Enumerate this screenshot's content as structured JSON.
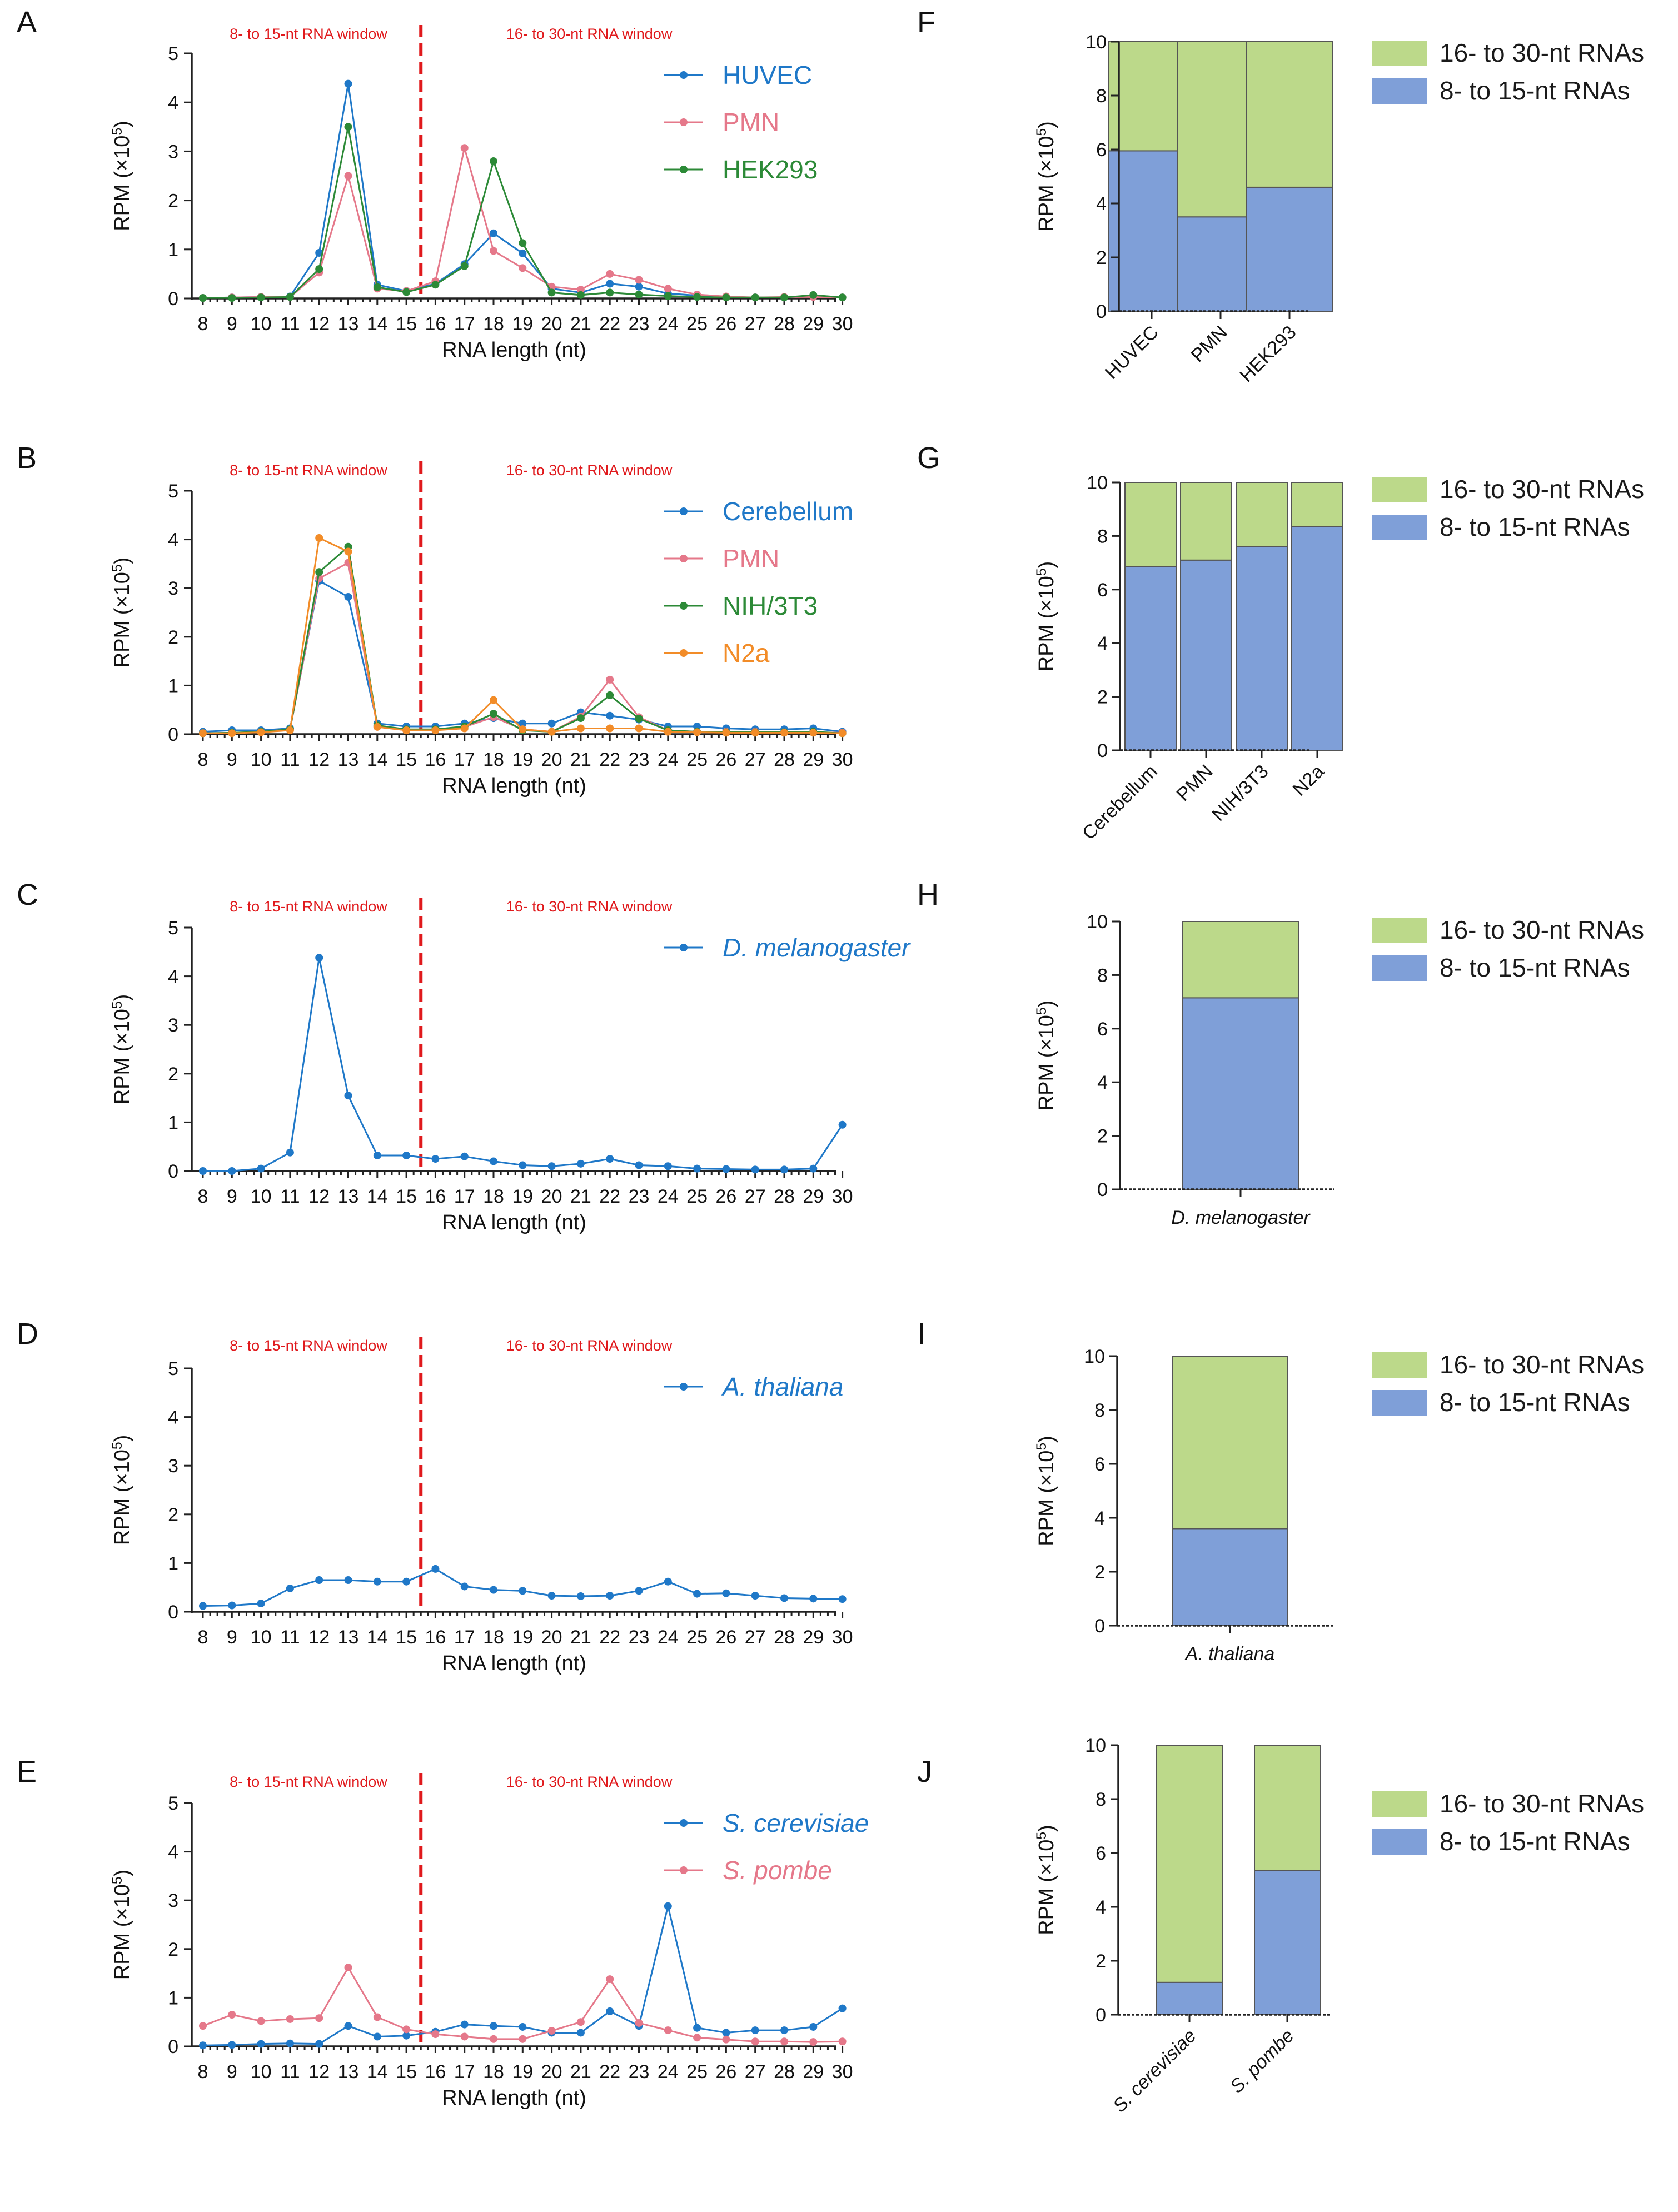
{
  "figure": {
    "x_categories": [
      "8",
      "9",
      "10",
      "11",
      "12",
      "13",
      "14",
      "15",
      "16",
      "17",
      "18",
      "19",
      "20",
      "21",
      "22",
      "23",
      "24",
      "25",
      "26",
      "27",
      "28",
      "29",
      "30"
    ],
    "colors": {
      "huvec": "#1f78c8",
      "pmn": "#e5788a",
      "hek293": "#2c8a37",
      "cerebellum": "#1f78c8",
      "nih3t3": "#2c8a37",
      "n2a": "#f28c28",
      "dmel": "#1f78c8",
      "athal": "#1f78c8",
      "scer": "#1f78c8",
      "spom": "#e5788a",
      "bar_short": "#7f9fd8",
      "bar_long": "#bcd98a",
      "window_line": "#e0191c",
      "legend_long_text": "#1a1a1a"
    }
  },
  "chart_data": [
    {
      "panel": "A",
      "type": "line",
      "window_labels": {
        "left": "8- to 15-nt RNA window",
        "right": "16- to 30-nt RNA window"
      },
      "xlabel": "RNA length (nt)",
      "ylabel": "RPM (×10⁵)",
      "ylim": [
        0,
        5
      ],
      "yticks": [
        "0",
        "1",
        "2",
        "3",
        "4",
        "5"
      ],
      "series": [
        {
          "name": "HUVEC",
          "color_key": "huvec",
          "values": [
            0.01,
            0.02,
            0.03,
            0.04,
            0.93,
            4.38,
            0.28,
            0.15,
            0.3,
            0.7,
            1.33,
            0.92,
            0.2,
            0.12,
            0.3,
            0.24,
            0.1,
            0.06,
            0.03,
            0.02,
            0.02,
            0.05,
            0.02
          ]
        },
        {
          "name": "PMN",
          "color_key": "pmn",
          "values": [
            0.01,
            0.02,
            0.03,
            0.03,
            0.53,
            2.5,
            0.2,
            0.15,
            0.35,
            3.07,
            0.97,
            0.62,
            0.24,
            0.18,
            0.5,
            0.38,
            0.2,
            0.08,
            0.04,
            0.02,
            0.03,
            0.03,
            0.02
          ]
        },
        {
          "name": "HEK293",
          "color_key": "hek293",
          "values": [
            0.01,
            0.01,
            0.02,
            0.03,
            0.6,
            3.5,
            0.23,
            0.13,
            0.28,
            0.66,
            2.8,
            1.13,
            0.12,
            0.07,
            0.12,
            0.08,
            0.05,
            0.03,
            0.02,
            0.02,
            0.02,
            0.07,
            0.02
          ]
        }
      ]
    },
    {
      "panel": "B",
      "type": "line",
      "window_labels": {
        "left": "8- to 15-nt RNA window",
        "right": "16- to 30-nt RNA window"
      },
      "xlabel": "RNA length (nt)",
      "ylabel": "RPM (×10⁵)",
      "ylim": [
        0,
        5
      ],
      "yticks": [
        "0",
        "1",
        "2",
        "3",
        "4",
        "5"
      ],
      "series": [
        {
          "name": "Cerebellum",
          "color_key": "cerebellum",
          "values": [
            0.05,
            0.08,
            0.08,
            0.12,
            3.15,
            2.82,
            0.22,
            0.16,
            0.16,
            0.22,
            0.33,
            0.22,
            0.22,
            0.45,
            0.38,
            0.3,
            0.16,
            0.16,
            0.12,
            0.1,
            0.1,
            0.12,
            0.05
          ]
        },
        {
          "name": "PMN",
          "color_key": "pmn",
          "values": [
            0.02,
            0.03,
            0.05,
            0.1,
            3.2,
            3.52,
            0.15,
            0.08,
            0.08,
            0.15,
            0.35,
            0.1,
            0.05,
            0.36,
            1.12,
            0.35,
            0.08,
            0.05,
            0.05,
            0.05,
            0.04,
            0.04,
            0.03
          ]
        },
        {
          "name": "NIH/3T3",
          "color_key": "nih3t3",
          "values": [
            0.02,
            0.03,
            0.05,
            0.1,
            3.33,
            3.85,
            0.18,
            0.1,
            0.1,
            0.16,
            0.42,
            0.08,
            0.05,
            0.33,
            0.8,
            0.32,
            0.08,
            0.05,
            0.04,
            0.04,
            0.04,
            0.05,
            0.02
          ]
        },
        {
          "name": "N2a",
          "color_key": "n2a",
          "values": [
            0.02,
            0.02,
            0.04,
            0.08,
            4.03,
            3.75,
            0.15,
            0.08,
            0.08,
            0.12,
            0.7,
            0.1,
            0.05,
            0.12,
            0.12,
            0.12,
            0.05,
            0.04,
            0.03,
            0.03,
            0.03,
            0.03,
            0.02
          ]
        }
      ]
    },
    {
      "panel": "C",
      "type": "line",
      "window_labels": {
        "left": "8- to 15-nt RNA window",
        "right": "16- to 30-nt RNA window"
      },
      "xlabel": "RNA length (nt)",
      "ylabel": "RPM (×10⁵)",
      "ylim": [
        0,
        5
      ],
      "yticks": [
        "0",
        "1",
        "2",
        "3",
        "4",
        "5"
      ],
      "series": [
        {
          "name": "D. melanogaster",
          "color_key": "dmel",
          "italic": true,
          "values": [
            0.0,
            0.0,
            0.05,
            0.38,
            4.38,
            1.55,
            0.32,
            0.32,
            0.25,
            0.3,
            0.2,
            0.12,
            0.1,
            0.15,
            0.25,
            0.12,
            0.1,
            0.05,
            0.04,
            0.03,
            0.03,
            0.05,
            0.95
          ]
        }
      ]
    },
    {
      "panel": "D",
      "type": "line",
      "window_labels": {
        "left": "8- to 15-nt RNA window",
        "right": "16- to 30-nt RNA window"
      },
      "xlabel": "RNA length (nt)",
      "ylabel": "RPM (×10⁵)",
      "ylim": [
        0,
        5
      ],
      "yticks": [
        "0",
        "1",
        "2",
        "3",
        "4",
        "5"
      ],
      "series": [
        {
          "name": "A. thaliana",
          "color_key": "athal",
          "italic": true,
          "values": [
            0.12,
            0.13,
            0.17,
            0.48,
            0.65,
            0.65,
            0.62,
            0.62,
            0.88,
            0.52,
            0.45,
            0.43,
            0.33,
            0.32,
            0.33,
            0.43,
            0.62,
            0.37,
            0.38,
            0.33,
            0.28,
            0.27,
            0.26
          ]
        }
      ]
    },
    {
      "panel": "E",
      "type": "line",
      "window_labels": {
        "left": "8- to 15-nt RNA window",
        "right": "16- to 30-nt RNA window"
      },
      "xlabel": "RNA length (nt)",
      "ylabel": "RPM (×10⁵)",
      "ylim": [
        0,
        5
      ],
      "yticks": [
        "0",
        "1",
        "2",
        "3",
        "4",
        "5"
      ],
      "series": [
        {
          "name": "S. cerevisiae",
          "color_key": "scer",
          "italic": true,
          "values": [
            0.02,
            0.03,
            0.05,
            0.06,
            0.05,
            0.42,
            0.2,
            0.22,
            0.3,
            0.45,
            0.42,
            0.4,
            0.28,
            0.28,
            0.72,
            0.42,
            2.88,
            0.38,
            0.28,
            0.33,
            0.33,
            0.4,
            0.78
          ]
        },
        {
          "name": "S. pombe",
          "color_key": "spom",
          "italic": true,
          "values": [
            0.42,
            0.65,
            0.52,
            0.56,
            0.58,
            1.62,
            0.6,
            0.35,
            0.25,
            0.2,
            0.15,
            0.15,
            0.32,
            0.5,
            1.38,
            0.48,
            0.33,
            0.18,
            0.14,
            0.1,
            0.1,
            0.09,
            0.1
          ]
        }
      ]
    },
    {
      "panel": "F",
      "type": "stacked-bar",
      "categories": [
        "HUVEC",
        "PMN",
        "HEK293"
      ],
      "rotate_labels": true,
      "ylabel": "RPM (×10⁵)",
      "ylim": [
        0,
        10
      ],
      "yticks": [
        "0",
        "2",
        "4",
        "6",
        "8",
        "10"
      ],
      "series": [
        {
          "name": "8- to 15-nt RNAs",
          "color_key": "bar_short",
          "values": [
            5.95,
            3.5,
            4.6
          ]
        },
        {
          "name": "16- to 30-nt RNAs",
          "color_key": "bar_long",
          "values": [
            4.05,
            6.5,
            5.4
          ]
        }
      ]
    },
    {
      "panel": "G",
      "type": "stacked-bar",
      "categories": [
        "Cerebellum",
        "PMN",
        "NIH/3T3",
        "N2a"
      ],
      "rotate_labels": true,
      "ylabel": "RPM (×10⁵)",
      "ylim": [
        0,
        10
      ],
      "yticks": [
        "0",
        "2",
        "4",
        "6",
        "8",
        "10"
      ],
      "series": [
        {
          "name": "8- to 15-nt RNAs",
          "color_key": "bar_short",
          "values": [
            6.85,
            7.1,
            7.6,
            8.35
          ]
        },
        {
          "name": "16- to 30-nt RNAs",
          "color_key": "bar_long",
          "values": [
            3.15,
            2.9,
            2.4,
            1.65
          ]
        }
      ]
    },
    {
      "panel": "H",
      "type": "stacked-bar",
      "categories": [
        "D. melanogaster"
      ],
      "italic_labels": true,
      "ylabel": "RPM (×10⁵)",
      "ylim": [
        0,
        10
      ],
      "yticks": [
        "0",
        "2",
        "4",
        "6",
        "8",
        "10"
      ],
      "series": [
        {
          "name": "8- to 15-nt RNAs",
          "color_key": "bar_short",
          "values": [
            7.15
          ]
        },
        {
          "name": "16- to 30-nt RNAs",
          "color_key": "bar_long",
          "values": [
            2.85
          ]
        }
      ]
    },
    {
      "panel": "I",
      "type": "stacked-bar",
      "categories": [
        "A. thaliana"
      ],
      "italic_labels": true,
      "ylabel": "RPM (×10⁵)",
      "ylim": [
        0,
        10
      ],
      "yticks": [
        "0",
        "2",
        "4",
        "6",
        "8",
        "10"
      ],
      "series": [
        {
          "name": "8- to 15-nt RNAs",
          "color_key": "bar_short",
          "values": [
            3.6
          ]
        },
        {
          "name": "16- to 30-nt RNAs",
          "color_key": "bar_long",
          "values": [
            6.4
          ]
        }
      ]
    },
    {
      "panel": "J",
      "type": "stacked-bar",
      "categories": [
        "S. cerevisiae",
        "S. pombe"
      ],
      "italic_labels": true,
      "rotate_labels": true,
      "ylabel": "RPM (×10⁵)",
      "ylim": [
        0,
        10
      ],
      "yticks": [
        "0",
        "2",
        "4",
        "6",
        "8",
        "10"
      ],
      "series": [
        {
          "name": "8- to 15-nt RNAs",
          "color_key": "bar_short",
          "values": [
            1.2,
            5.35
          ]
        },
        {
          "name": "16- to 30-nt RNAs",
          "color_key": "bar_long",
          "values": [
            8.8,
            4.65
          ]
        }
      ]
    }
  ]
}
